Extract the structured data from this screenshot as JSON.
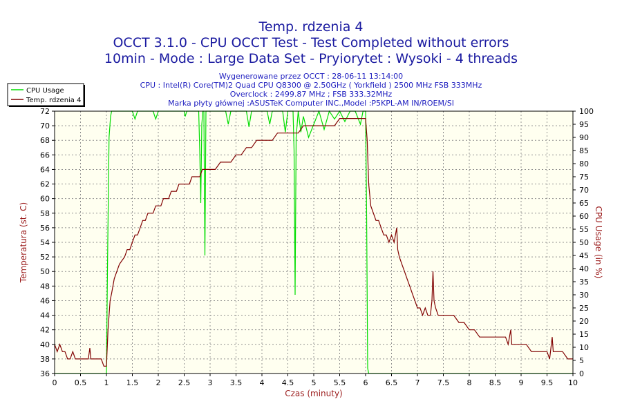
{
  "header": {
    "title_lines": [
      "Temp. rdzenia 4",
      "OCCT 3.1.0 - CPU OCCT Test - Test Completed without errors",
      "10min - Mode : Large Data Set - Pryiorytet : Wysoki - 4 threads"
    ],
    "info_lines": [
      "Wygenerowane przez OCCT : 28-06-11 13:14:00",
      "CPU : Intel(R) Core(TM)2 Quad CPU Q8300 @ 2.50GHz ( Yorkfield ) 2500 MHz FSB 333MHz",
      "Overclock : 2499.87 MHz ; FSB 333.32MHz",
      "Marka płyty głównej :ASUSTeK Computer INC.,Model :P5KPL-AM IN/ROEM/SI"
    ]
  },
  "chart_data": {
    "type": "line",
    "xlabel": "Czas (minuty)",
    "ylabel_left": "Temperatura (st. C)",
    "ylabel_right": "CPU Usage (in %)",
    "xlim": [
      0,
      10
    ],
    "ylim_left": [
      36,
      72
    ],
    "ylim_right": [
      0,
      100
    ],
    "x_ticks": [
      "0",
      "0.5",
      "1",
      "1.5",
      "2",
      "2.5",
      "3",
      "3.5",
      "4",
      "4.5",
      "5",
      "5.5",
      "6",
      "6.5",
      "7",
      "7.5",
      "8",
      "8.5",
      "9",
      "9.5",
      "10"
    ],
    "y_left_ticks": [
      "36",
      "38",
      "40",
      "42",
      "44",
      "46",
      "48",
      "50",
      "52",
      "54",
      "56",
      "58",
      "60",
      "62",
      "64",
      "66",
      "68",
      "70",
      "72"
    ],
    "y_right_ticks": [
      "0",
      "5",
      "10",
      "15",
      "20",
      "25",
      "30",
      "35",
      "40",
      "45",
      "50",
      "55",
      "60",
      "65",
      "70",
      "75",
      "80",
      "85",
      "90",
      "95",
      "100"
    ],
    "grid": true,
    "legend_position": "top-left",
    "plot_background": "#fffff0",
    "series": [
      {
        "name": "CPU Usage",
        "axis": "right",
        "color": "#00dd00",
        "points": [
          [
            0,
            0
          ],
          [
            1.0,
            0
          ],
          [
            1.02,
            40
          ],
          [
            1.05,
            90
          ],
          [
            1.08,
            98
          ],
          [
            1.1,
            100
          ],
          [
            1.5,
            100
          ],
          [
            1.55,
            97
          ],
          [
            1.6,
            100
          ],
          [
            1.9,
            100
          ],
          [
            1.95,
            97
          ],
          [
            2.0,
            100
          ],
          [
            2.5,
            100
          ],
          [
            2.52,
            98
          ],
          [
            2.55,
            100
          ],
          [
            2.78,
            100
          ],
          [
            2.8,
            85
          ],
          [
            2.82,
            65
          ],
          [
            2.84,
            95
          ],
          [
            2.86,
            100
          ],
          [
            2.88,
            100
          ],
          [
            2.9,
            45
          ],
          [
            2.92,
            100
          ],
          [
            3.0,
            100
          ],
          [
            3.3,
            100
          ],
          [
            3.35,
            95
          ],
          [
            3.4,
            100
          ],
          [
            3.7,
            100
          ],
          [
            3.75,
            94
          ],
          [
            3.8,
            100
          ],
          [
            4.1,
            100
          ],
          [
            4.15,
            95
          ],
          [
            4.2,
            100
          ],
          [
            4.4,
            100
          ],
          [
            4.45,
            92
          ],
          [
            4.5,
            100
          ],
          [
            4.6,
            100
          ],
          [
            4.62,
            85
          ],
          [
            4.64,
            30
          ],
          [
            4.66,
            90
          ],
          [
            4.68,
            95
          ],
          [
            4.7,
            100
          ],
          [
            4.75,
            92
          ],
          [
            4.8,
            98
          ],
          [
            4.9,
            90
          ],
          [
            5.0,
            95
          ],
          [
            5.1,
            100
          ],
          [
            5.2,
            93
          ],
          [
            5.3,
            100
          ],
          [
            5.4,
            97
          ],
          [
            5.5,
            100
          ],
          [
            5.6,
            96
          ],
          [
            5.7,
            100
          ],
          [
            5.8,
            100
          ],
          [
            5.9,
            95
          ],
          [
            5.95,
            100
          ],
          [
            6.0,
            100
          ],
          [
            6.02,
            60
          ],
          [
            6.04,
            2
          ],
          [
            6.06,
            0
          ],
          [
            10,
            0
          ]
        ]
      },
      {
        "name": "Temp. rdzenia 4",
        "axis": "left",
        "color": "#800000",
        "points": [
          [
            0,
            40
          ],
          [
            0.05,
            39
          ],
          [
            0.1,
            40
          ],
          [
            0.15,
            39
          ],
          [
            0.2,
            39
          ],
          [
            0.25,
            38
          ],
          [
            0.3,
            38
          ],
          [
            0.35,
            39
          ],
          [
            0.4,
            38
          ],
          [
            0.45,
            38
          ],
          [
            0.5,
            38
          ],
          [
            0.55,
            38
          ],
          [
            0.6,
            38
          ],
          [
            0.65,
            38
          ],
          [
            0.68,
            39.5
          ],
          [
            0.7,
            38
          ],
          [
            0.8,
            38
          ],
          [
            0.9,
            38
          ],
          [
            0.95,
            37
          ],
          [
            1.0,
            37
          ],
          [
            1.03,
            42
          ],
          [
            1.07,
            46
          ],
          [
            1.1,
            47
          ],
          [
            1.15,
            49
          ],
          [
            1.2,
            50
          ],
          [
            1.25,
            51
          ],
          [
            1.3,
            51.5
          ],
          [
            1.35,
            52
          ],
          [
            1.4,
            53
          ],
          [
            1.45,
            53
          ],
          [
            1.5,
            54
          ],
          [
            1.55,
            55
          ],
          [
            1.6,
            55
          ],
          [
            1.65,
            56
          ],
          [
            1.7,
            57
          ],
          [
            1.75,
            57
          ],
          [
            1.8,
            58
          ],
          [
            1.85,
            58
          ],
          [
            1.9,
            58
          ],
          [
            1.95,
            59
          ],
          [
            2.0,
            59
          ],
          [
            2.05,
            59
          ],
          [
            2.1,
            60
          ],
          [
            2.15,
            60
          ],
          [
            2.2,
            60
          ],
          [
            2.25,
            61
          ],
          [
            2.3,
            61
          ],
          [
            2.35,
            61
          ],
          [
            2.4,
            62
          ],
          [
            2.45,
            62
          ],
          [
            2.5,
            62
          ],
          [
            2.55,
            62
          ],
          [
            2.6,
            62
          ],
          [
            2.65,
            63
          ],
          [
            2.7,
            63
          ],
          [
            2.75,
            63
          ],
          [
            2.8,
            63
          ],
          [
            2.85,
            64
          ],
          [
            2.9,
            64
          ],
          [
            3.0,
            64
          ],
          [
            3.1,
            64
          ],
          [
            3.2,
            65
          ],
          [
            3.3,
            65
          ],
          [
            3.4,
            65
          ],
          [
            3.5,
            66
          ],
          [
            3.6,
            66
          ],
          [
            3.7,
            67
          ],
          [
            3.8,
            67
          ],
          [
            3.9,
            68
          ],
          [
            4.0,
            68
          ],
          [
            4.1,
            68
          ],
          [
            4.2,
            68
          ],
          [
            4.3,
            69
          ],
          [
            4.4,
            69
          ],
          [
            4.5,
            69
          ],
          [
            4.6,
            69
          ],
          [
            4.7,
            69
          ],
          [
            4.8,
            70
          ],
          [
            4.9,
            70
          ],
          [
            5.0,
            70
          ],
          [
            5.1,
            70
          ],
          [
            5.2,
            70
          ],
          [
            5.3,
            70
          ],
          [
            5.4,
            70
          ],
          [
            5.5,
            71
          ],
          [
            5.6,
            71
          ],
          [
            5.7,
            71
          ],
          [
            5.8,
            71
          ],
          [
            5.9,
            71
          ],
          [
            6.0,
            71
          ],
          [
            6.03,
            68
          ],
          [
            6.06,
            62
          ],
          [
            6.1,
            59
          ],
          [
            6.15,
            58
          ],
          [
            6.2,
            57
          ],
          [
            6.25,
            57
          ],
          [
            6.3,
            56
          ],
          [
            6.35,
            55
          ],
          [
            6.4,
            55
          ],
          [
            6.45,
            54
          ],
          [
            6.5,
            55
          ],
          [
            6.55,
            54
          ],
          [
            6.6,
            56
          ],
          [
            6.62,
            53
          ],
          [
            6.65,
            52
          ],
          [
            6.7,
            51
          ],
          [
            6.75,
            50
          ],
          [
            6.8,
            49
          ],
          [
            6.85,
            48
          ],
          [
            6.9,
            47
          ],
          [
            6.95,
            46
          ],
          [
            7.0,
            45
          ],
          [
            7.05,
            45
          ],
          [
            7.1,
            44
          ],
          [
            7.15,
            45
          ],
          [
            7.2,
            44
          ],
          [
            7.25,
            44
          ],
          [
            7.28,
            46
          ],
          [
            7.3,
            50
          ],
          [
            7.32,
            46
          ],
          [
            7.35,
            45
          ],
          [
            7.4,
            44
          ],
          [
            7.45,
            44
          ],
          [
            7.5,
            44
          ],
          [
            7.6,
            44
          ],
          [
            7.7,
            44
          ],
          [
            7.8,
            43
          ],
          [
            7.9,
            43
          ],
          [
            8.0,
            42
          ],
          [
            8.1,
            42
          ],
          [
            8.2,
            41
          ],
          [
            8.3,
            41
          ],
          [
            8.4,
            41
          ],
          [
            8.5,
            41
          ],
          [
            8.6,
            41
          ],
          [
            8.7,
            41
          ],
          [
            8.75,
            40
          ],
          [
            8.8,
            42
          ],
          [
            8.82,
            40
          ],
          [
            8.9,
            40
          ],
          [
            9.0,
            40
          ],
          [
            9.1,
            40
          ],
          [
            9.2,
            39
          ],
          [
            9.3,
            39
          ],
          [
            9.4,
            39
          ],
          [
            9.5,
            39
          ],
          [
            9.55,
            38
          ],
          [
            9.6,
            41
          ],
          [
            9.62,
            39
          ],
          [
            9.7,
            39
          ],
          [
            9.8,
            39
          ],
          [
            9.9,
            38
          ],
          [
            10,
            38
          ]
        ]
      }
    ]
  }
}
